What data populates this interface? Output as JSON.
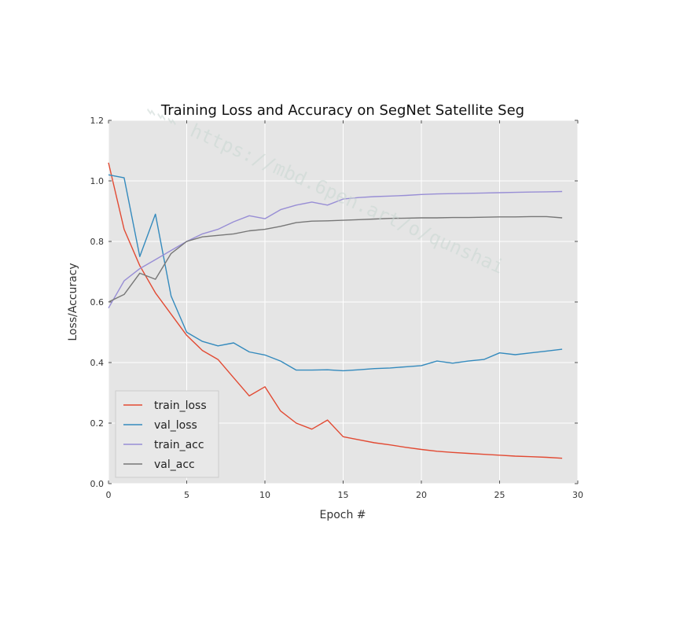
{
  "chart_data": {
    "type": "line",
    "title": "Training Loss and Accuracy on SegNet Satellite Seg",
    "xlabel": "Epoch #",
    "ylabel": "Loss/Accuracy",
    "xlim": [
      0,
      30
    ],
    "ylim": [
      0.0,
      1.2
    ],
    "xticks": [
      0,
      5,
      10,
      15,
      20,
      25,
      30
    ],
    "yticks": [
      0.0,
      0.2,
      0.4,
      0.6,
      0.8,
      1.0,
      1.2
    ],
    "xtick_labels": [
      "0",
      "5",
      "10",
      "15",
      "20",
      "25",
      "30"
    ],
    "ytick_labels": [
      "0.0",
      "0.2",
      "0.4",
      "0.6",
      "0.8",
      "1.0",
      "1.2"
    ],
    "grid": true,
    "legend_position": "bottom-left",
    "x": [
      0,
      1,
      2,
      3,
      4,
      5,
      6,
      7,
      8,
      9,
      10,
      11,
      12,
      13,
      14,
      15,
      16,
      17,
      18,
      19,
      20,
      21,
      22,
      23,
      24,
      25,
      26,
      27,
      28,
      29
    ],
    "series": [
      {
        "name": "train_loss",
        "color": "#e24a33",
        "values": [
          1.06,
          0.84,
          0.72,
          0.63,
          0.56,
          0.49,
          0.44,
          0.41,
          0.35,
          0.29,
          0.32,
          0.24,
          0.2,
          0.18,
          0.21,
          0.155,
          0.145,
          0.135,
          0.128,
          0.12,
          0.113,
          0.107,
          0.103,
          0.1,
          0.097,
          0.094,
          0.091,
          0.089,
          0.087,
          0.084
        ]
      },
      {
        "name": "val_loss",
        "color": "#348abd",
        "values": [
          1.02,
          1.01,
          0.75,
          0.89,
          0.62,
          0.5,
          0.47,
          0.455,
          0.465,
          0.435,
          0.425,
          0.405,
          0.375,
          0.375,
          0.376,
          0.373,
          0.376,
          0.38,
          0.382,
          0.386,
          0.39,
          0.405,
          0.398,
          0.405,
          0.41,
          0.432,
          0.426,
          0.432,
          0.438,
          0.444
        ]
      },
      {
        "name": "train_acc",
        "color": "#988ed5",
        "values": [
          0.58,
          0.67,
          0.71,
          0.74,
          0.77,
          0.8,
          0.825,
          0.84,
          0.865,
          0.885,
          0.875,
          0.905,
          0.92,
          0.93,
          0.92,
          0.94,
          0.945,
          0.948,
          0.95,
          0.952,
          0.955,
          0.957,
          0.958,
          0.959,
          0.96,
          0.961,
          0.962,
          0.963,
          0.964,
          0.965
        ]
      },
      {
        "name": "val_acc",
        "color": "#777777",
        "values": [
          0.6,
          0.625,
          0.695,
          0.675,
          0.76,
          0.8,
          0.815,
          0.82,
          0.825,
          0.835,
          0.84,
          0.85,
          0.862,
          0.867,
          0.868,
          0.87,
          0.872,
          0.874,
          0.876,
          0.877,
          0.878,
          0.878,
          0.879,
          0.879,
          0.88,
          0.881,
          0.881,
          0.882,
          0.882,
          0.878
        ]
      }
    ]
  },
  "watermark": {
    "text": "https://mbd.6pen.art/o/qunshai",
    "icon": "blurred-logo-icon"
  }
}
